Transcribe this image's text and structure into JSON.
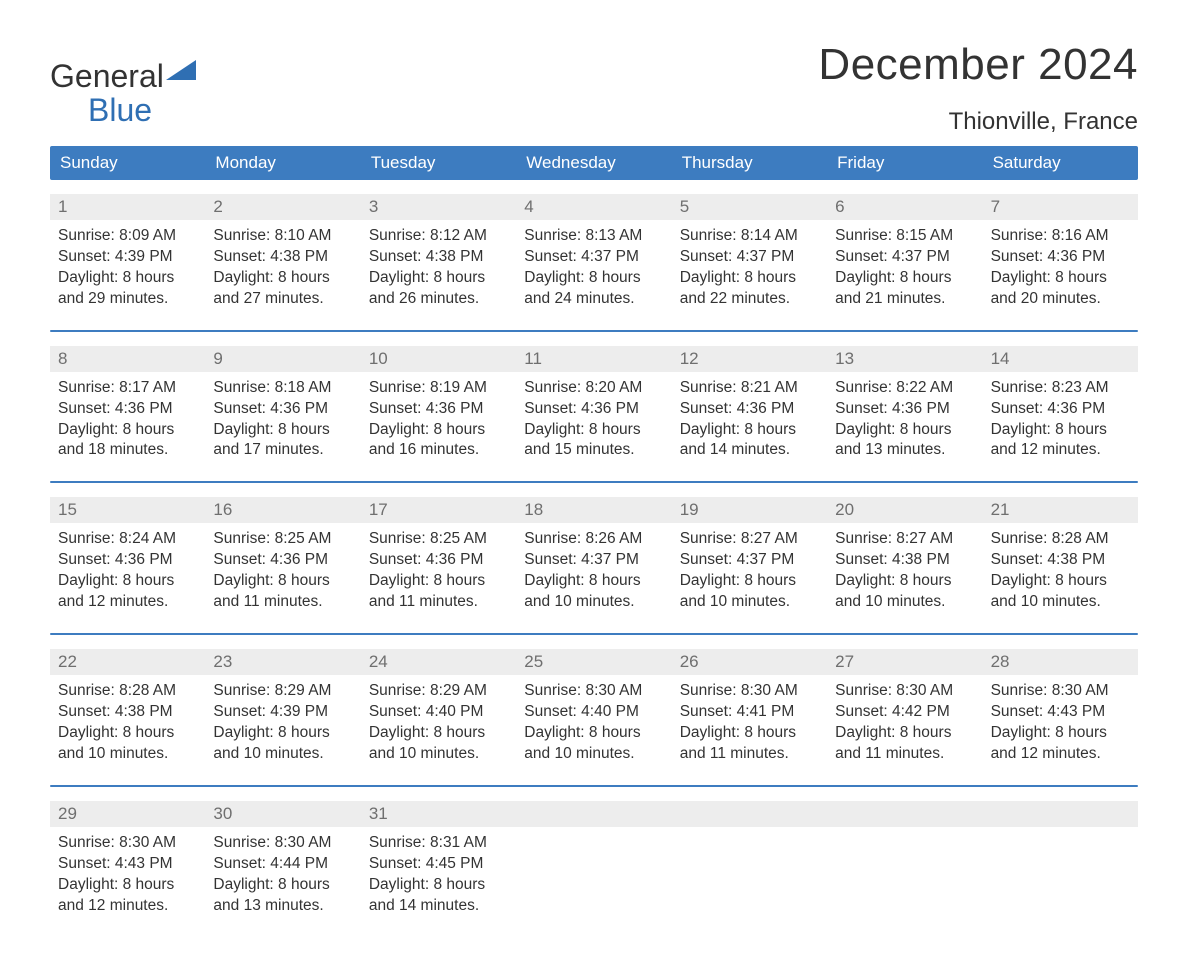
{
  "logo": {
    "line1": "General",
    "line2": "Blue",
    "brand_color": "#2f6fb3"
  },
  "title": "December 2024",
  "location": "Thionville, France",
  "colors": {
    "header_bg": "#3d7cc0",
    "header_text": "#ffffff",
    "daynum_bg": "#ededed",
    "daynum_text": "#6f6f6f",
    "body_text": "#333333",
    "sep": "#3d7cc0",
    "page_bg": "#ffffff"
  },
  "dow": [
    "Sunday",
    "Monday",
    "Tuesday",
    "Wednesday",
    "Thursday",
    "Friday",
    "Saturday"
  ],
  "weeks": [
    {
      "days": [
        {
          "n": "1",
          "sunrise": "Sunrise: 8:09 AM",
          "sunset": "Sunset: 4:39 PM",
          "d1": "Daylight: 8 hours",
          "d2": "and 29 minutes."
        },
        {
          "n": "2",
          "sunrise": "Sunrise: 8:10 AM",
          "sunset": "Sunset: 4:38 PM",
          "d1": "Daylight: 8 hours",
          "d2": "and 27 minutes."
        },
        {
          "n": "3",
          "sunrise": "Sunrise: 8:12 AM",
          "sunset": "Sunset: 4:38 PM",
          "d1": "Daylight: 8 hours",
          "d2": "and 26 minutes."
        },
        {
          "n": "4",
          "sunrise": "Sunrise: 8:13 AM",
          "sunset": "Sunset: 4:37 PM",
          "d1": "Daylight: 8 hours",
          "d2": "and 24 minutes."
        },
        {
          "n": "5",
          "sunrise": "Sunrise: 8:14 AM",
          "sunset": "Sunset: 4:37 PM",
          "d1": "Daylight: 8 hours",
          "d2": "and 22 minutes."
        },
        {
          "n": "6",
          "sunrise": "Sunrise: 8:15 AM",
          "sunset": "Sunset: 4:37 PM",
          "d1": "Daylight: 8 hours",
          "d2": "and 21 minutes."
        },
        {
          "n": "7",
          "sunrise": "Sunrise: 8:16 AM",
          "sunset": "Sunset: 4:36 PM",
          "d1": "Daylight: 8 hours",
          "d2": "and 20 minutes."
        }
      ]
    },
    {
      "days": [
        {
          "n": "8",
          "sunrise": "Sunrise: 8:17 AM",
          "sunset": "Sunset: 4:36 PM",
          "d1": "Daylight: 8 hours",
          "d2": "and 18 minutes."
        },
        {
          "n": "9",
          "sunrise": "Sunrise: 8:18 AM",
          "sunset": "Sunset: 4:36 PM",
          "d1": "Daylight: 8 hours",
          "d2": "and 17 minutes."
        },
        {
          "n": "10",
          "sunrise": "Sunrise: 8:19 AM",
          "sunset": "Sunset: 4:36 PM",
          "d1": "Daylight: 8 hours",
          "d2": "and 16 minutes."
        },
        {
          "n": "11",
          "sunrise": "Sunrise: 8:20 AM",
          "sunset": "Sunset: 4:36 PM",
          "d1": "Daylight: 8 hours",
          "d2": "and 15 minutes."
        },
        {
          "n": "12",
          "sunrise": "Sunrise: 8:21 AM",
          "sunset": "Sunset: 4:36 PM",
          "d1": "Daylight: 8 hours",
          "d2": "and 14 minutes."
        },
        {
          "n": "13",
          "sunrise": "Sunrise: 8:22 AM",
          "sunset": "Sunset: 4:36 PM",
          "d1": "Daylight: 8 hours",
          "d2": "and 13 minutes."
        },
        {
          "n": "14",
          "sunrise": "Sunrise: 8:23 AM",
          "sunset": "Sunset: 4:36 PM",
          "d1": "Daylight: 8 hours",
          "d2": "and 12 minutes."
        }
      ]
    },
    {
      "days": [
        {
          "n": "15",
          "sunrise": "Sunrise: 8:24 AM",
          "sunset": "Sunset: 4:36 PM",
          "d1": "Daylight: 8 hours",
          "d2": "and 12 minutes."
        },
        {
          "n": "16",
          "sunrise": "Sunrise: 8:25 AM",
          "sunset": "Sunset: 4:36 PM",
          "d1": "Daylight: 8 hours",
          "d2": "and 11 minutes."
        },
        {
          "n": "17",
          "sunrise": "Sunrise: 8:25 AM",
          "sunset": "Sunset: 4:36 PM",
          "d1": "Daylight: 8 hours",
          "d2": "and 11 minutes."
        },
        {
          "n": "18",
          "sunrise": "Sunrise: 8:26 AM",
          "sunset": "Sunset: 4:37 PM",
          "d1": "Daylight: 8 hours",
          "d2": "and 10 minutes."
        },
        {
          "n": "19",
          "sunrise": "Sunrise: 8:27 AM",
          "sunset": "Sunset: 4:37 PM",
          "d1": "Daylight: 8 hours",
          "d2": "and 10 minutes."
        },
        {
          "n": "20",
          "sunrise": "Sunrise: 8:27 AM",
          "sunset": "Sunset: 4:38 PM",
          "d1": "Daylight: 8 hours",
          "d2": "and 10 minutes."
        },
        {
          "n": "21",
          "sunrise": "Sunrise: 8:28 AM",
          "sunset": "Sunset: 4:38 PM",
          "d1": "Daylight: 8 hours",
          "d2": "and 10 minutes."
        }
      ]
    },
    {
      "days": [
        {
          "n": "22",
          "sunrise": "Sunrise: 8:28 AM",
          "sunset": "Sunset: 4:38 PM",
          "d1": "Daylight: 8 hours",
          "d2": "and 10 minutes."
        },
        {
          "n": "23",
          "sunrise": "Sunrise: 8:29 AM",
          "sunset": "Sunset: 4:39 PM",
          "d1": "Daylight: 8 hours",
          "d2": "and 10 minutes."
        },
        {
          "n": "24",
          "sunrise": "Sunrise: 8:29 AM",
          "sunset": "Sunset: 4:40 PM",
          "d1": "Daylight: 8 hours",
          "d2": "and 10 minutes."
        },
        {
          "n": "25",
          "sunrise": "Sunrise: 8:30 AM",
          "sunset": "Sunset: 4:40 PM",
          "d1": "Daylight: 8 hours",
          "d2": "and 10 minutes."
        },
        {
          "n": "26",
          "sunrise": "Sunrise: 8:30 AM",
          "sunset": "Sunset: 4:41 PM",
          "d1": "Daylight: 8 hours",
          "d2": "and 11 minutes."
        },
        {
          "n": "27",
          "sunrise": "Sunrise: 8:30 AM",
          "sunset": "Sunset: 4:42 PM",
          "d1": "Daylight: 8 hours",
          "d2": "and 11 minutes."
        },
        {
          "n": "28",
          "sunrise": "Sunrise: 8:30 AM",
          "sunset": "Sunset: 4:43 PM",
          "d1": "Daylight: 8 hours",
          "d2": "and 12 minutes."
        }
      ]
    },
    {
      "days": [
        {
          "n": "29",
          "sunrise": "Sunrise: 8:30 AM",
          "sunset": "Sunset: 4:43 PM",
          "d1": "Daylight: 8 hours",
          "d2": "and 12 minutes."
        },
        {
          "n": "30",
          "sunrise": "Sunrise: 8:30 AM",
          "sunset": "Sunset: 4:44 PM",
          "d1": "Daylight: 8 hours",
          "d2": "and 13 minutes."
        },
        {
          "n": "31",
          "sunrise": "Sunrise: 8:31 AM",
          "sunset": "Sunset: 4:45 PM",
          "d1": "Daylight: 8 hours",
          "d2": "and 14 minutes."
        },
        {
          "n": "",
          "sunrise": "",
          "sunset": "",
          "d1": "",
          "d2": ""
        },
        {
          "n": "",
          "sunrise": "",
          "sunset": "",
          "d1": "",
          "d2": ""
        },
        {
          "n": "",
          "sunrise": "",
          "sunset": "",
          "d1": "",
          "d2": ""
        },
        {
          "n": "",
          "sunrise": "",
          "sunset": "",
          "d1": "",
          "d2": ""
        }
      ]
    }
  ]
}
